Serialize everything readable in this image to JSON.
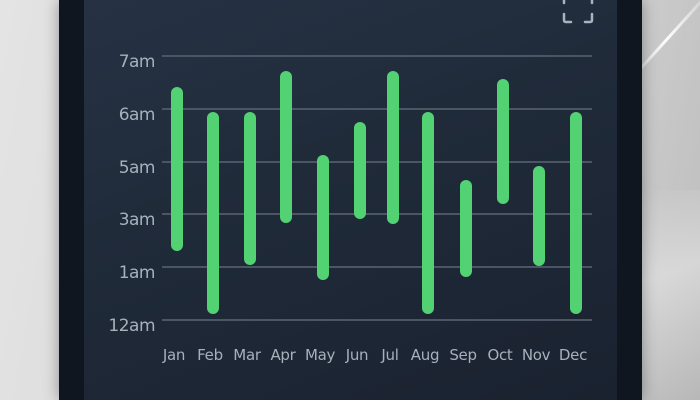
{
  "chart_data": {
    "type": "bar",
    "subtype": "floating-range",
    "title": "",
    "xlabel": "",
    "ylabel": "",
    "categories": [
      "Jan",
      "Feb",
      "Mar",
      "Apr",
      "May",
      "Jun",
      "Jul",
      "Aug",
      "Sep",
      "Oct",
      "Nov",
      "Dec"
    ],
    "y_ticks": [
      "12am",
      "1am",
      "3am",
      "5am",
      "6am",
      "7am"
    ],
    "y_tick_positions": [
      0,
      1,
      2,
      3,
      4,
      5
    ],
    "series": [
      {
        "name": "range",
        "color": "#52d273",
        "low": [
          1.31,
          0.11,
          1.04,
          1.84,
          0.76,
          1.91,
          1.82,
          0.11,
          0.82,
          2.2,
          1.02,
          0.11
        ],
        "high": [
          4.41,
          3.94,
          3.94,
          4.72,
          3.13,
          3.75,
          4.72,
          3.94,
          2.66,
          4.56,
          2.92,
          3.94
        ]
      }
    ],
    "grid": true,
    "legend": "none"
  },
  "ui": {
    "expand_icon": "expand-icon",
    "accent": "#52d273",
    "panel_bg": "#212c3b",
    "frame_bg": "#0f161f",
    "label_color": "#a7b0bb",
    "grid_color": "#4b5563"
  }
}
